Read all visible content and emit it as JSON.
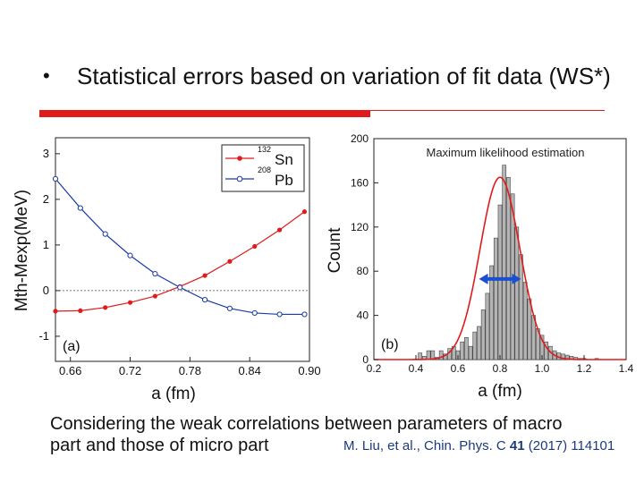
{
  "slide": {
    "bullet": "•",
    "headline": "Statistical errors based on variation of fit data  (WS*)",
    "footer_line1": "Considering the weak correlations between parameters of macro",
    "footer_line2": "part and those of micro part",
    "citation_prefix": "M. Liu, et al., Chin. Phys. C ",
    "citation_volume": "41",
    "citation_suffix": " (2017) 114101",
    "accent_color": "#e11a1a"
  },
  "chart_data": [
    {
      "type": "line",
      "panel_label": "(a)",
      "xlabel": "a (fm)",
      "ylabel": "Mth-Mexp(MeV)",
      "xlim": [
        0.645,
        0.9
      ],
      "ylim": [
        -1.55,
        3.35
      ],
      "xticks": [
        0.66,
        0.72,
        0.78,
        0.84,
        0.9
      ],
      "xtick_labels": [
        "0.66",
        "0.72",
        "0.78",
        "0.84",
        "0.90"
      ],
      "yticks": [
        -1,
        0,
        1,
        2,
        3
      ],
      "ytick_labels": [
        "-1",
        "0",
        "1",
        "2",
        "3"
      ],
      "reference_line": 0,
      "series": [
        {
          "name": "Sn",
          "mass_number": "132",
          "color": "#e11a1a",
          "marker": "filled-circle",
          "x": [
            0.645,
            0.67,
            0.695,
            0.72,
            0.745,
            0.77,
            0.795,
            0.82,
            0.845,
            0.87,
            0.895
          ],
          "y": [
            -0.45,
            -0.44,
            -0.37,
            -0.26,
            -0.12,
            0.09,
            0.33,
            0.64,
            0.97,
            1.33,
            1.73
          ]
        },
        {
          "name": "Pb",
          "mass_number": "208",
          "color": "#1a3aa8",
          "marker": "open-circle",
          "x": [
            0.645,
            0.67,
            0.695,
            0.72,
            0.745,
            0.77,
            0.795,
            0.82,
            0.845,
            0.87,
            0.895
          ],
          "y": [
            2.45,
            1.81,
            1.24,
            0.77,
            0.37,
            0.07,
            -0.2,
            -0.39,
            -0.49,
            -0.52,
            -0.52
          ]
        }
      ]
    },
    {
      "type": "bar",
      "panel_label": "(b)",
      "title": "Maximum likelihood estimation",
      "xlabel": "a (fm)",
      "ylabel": "Count",
      "xlim": [
        0.2,
        1.4
      ],
      "ylim": [
        0,
        200
      ],
      "xticks": [
        0.2,
        0.4,
        0.6,
        0.8,
        1.0,
        1.2,
        1.4
      ],
      "xtick_labels": [
        "0.2",
        "0.4",
        "0.6",
        "0.8",
        "1.0",
        "1.2",
        "1.4"
      ],
      "yticks": [
        0,
        40,
        80,
        120,
        160,
        200
      ],
      "ytick_labels": [
        "0",
        "40",
        "80",
        "120",
        "160",
        "200"
      ],
      "bin_width": 0.02,
      "bin_start": 0.37,
      "values": [
        0,
        0,
        6,
        3,
        8,
        8,
        2,
        8,
        5,
        10,
        12,
        8,
        16,
        20,
        12,
        25,
        30,
        45,
        60,
        85,
        110,
        140,
        176,
        165,
        150,
        120,
        95,
        70,
        55,
        40,
        28,
        22,
        16,
        12,
        8,
        6,
        5,
        4,
        3,
        2,
        1,
        1,
        0,
        0,
        1,
        0
      ],
      "fit_curve": {
        "type": "gaussian",
        "mean": 0.8,
        "sigma": 0.095,
        "peak": 165,
        "color": "#e11a1a"
      },
      "error_bar": {
        "center": 0.8,
        "halfwidth": 0.1,
        "y": 73,
        "color": "#1a4fd0"
      }
    }
  ]
}
